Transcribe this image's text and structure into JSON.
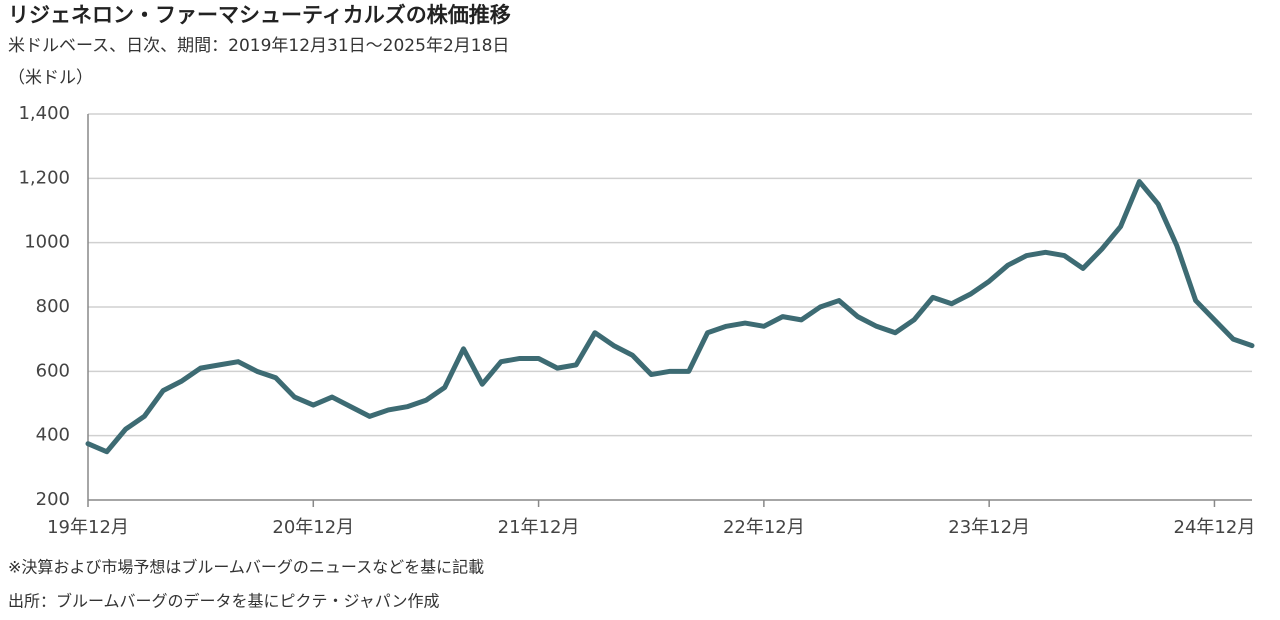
{
  "chart_data": {
    "type": "line",
    "title": "リジェネロン・ファーマシューティカルズの株価推移",
    "subtitle": "米ドルベース、日次、期間：2019年12月31日～2025年2月18日",
    "y_label": "（米ドル）",
    "notes": [
      "※決算および市場予想はブルームバーグのニュースなどを基に記載",
      "出所：ブルームバーグのデータを基にピクテ・ジャパン作成"
    ],
    "x": [
      "2019-12",
      "2020-01",
      "2020-02",
      "2020-03",
      "2020-04",
      "2020-05",
      "2020-06",
      "2020-07",
      "2020-08",
      "2020-09",
      "2020-10",
      "2020-11",
      "2020-12",
      "2021-01",
      "2021-02",
      "2021-03",
      "2021-04",
      "2021-05",
      "2021-06",
      "2021-07",
      "2021-08",
      "2021-09",
      "2021-10",
      "2021-11",
      "2021-12",
      "2022-01",
      "2022-02",
      "2022-03",
      "2022-04",
      "2022-05",
      "2022-06",
      "2022-07",
      "2022-08",
      "2022-09",
      "2022-10",
      "2022-11",
      "2022-12",
      "2023-01",
      "2023-02",
      "2023-03",
      "2023-04",
      "2023-05",
      "2023-06",
      "2023-07",
      "2023-08",
      "2023-09",
      "2023-10",
      "2023-11",
      "2023-12",
      "2024-01",
      "2024-02",
      "2024-03",
      "2024-04",
      "2024-05",
      "2024-06",
      "2024-07",
      "2024-08",
      "2024-09",
      "2024-10",
      "2024-11",
      "2024-12",
      "2025-01",
      "2025-02"
    ],
    "series": [
      {
        "name": "リジェネロン・ファーマシューティカルズ",
        "color": "#3d6b73",
        "values": [
          375,
          350,
          420,
          460,
          540,
          570,
          610,
          620,
          630,
          600,
          580,
          520,
          495,
          520,
          490,
          460,
          480,
          490,
          510,
          550,
          670,
          560,
          630,
          640,
          640,
          610,
          620,
          720,
          680,
          650,
          590,
          600,
          600,
          720,
          740,
          750,
          740,
          770,
          760,
          800,
          820,
          770,
          740,
          720,
          760,
          830,
          810,
          840,
          880,
          930,
          960,
          970,
          960,
          920,
          980,
          1050,
          1190,
          1120,
          990,
          820,
          760,
          700,
          680
        ]
      }
    ],
    "ylim": [
      200,
      1400
    ],
    "yticks": [
      200,
      400,
      600,
      800,
      1000,
      {
        "value": 1200,
        "label": "1,200"
      },
      {
        "value": 1400,
        "label": "1,400"
      }
    ],
    "xticks": [
      {
        "value": "2019-12",
        "label": "19年12月"
      },
      {
        "value": "2020-12",
        "label": "20年12月"
      },
      {
        "value": "2021-12",
        "label": "21年12月"
      },
      {
        "value": "2022-12",
        "label": "22年12月"
      },
      {
        "value": "2023-12",
        "label": "23年12月"
      },
      {
        "value": "2024-12",
        "label": "24年12月"
      }
    ],
    "grid": true
  }
}
